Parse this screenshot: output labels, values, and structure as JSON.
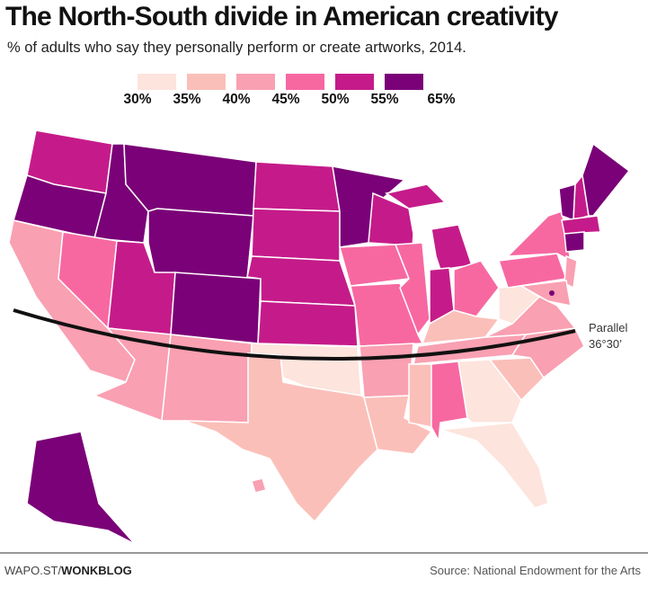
{
  "title": "The North-South divide in American creativity",
  "subtitle": "% of adults who say they personally perform or create artworks, 2014.",
  "legend": {
    "labels": [
      "30%",
      "35%",
      "40%",
      "45%",
      "50%",
      "55%",
      "65%"
    ],
    "colors": [
      "#fde4dc",
      "#fbbfb9",
      "#f9a0b2",
      "#f768a1",
      "#c51b8a",
      "#7a0177"
    ]
  },
  "states": {
    "WA": 4,
    "OR": 5,
    "CA": 2,
    "ID": 5,
    "NV": 3,
    "MT": 5,
    "WY": 5,
    "UT": 4,
    "AZ": 2,
    "CO": 5,
    "NM": 2,
    "ND": 4,
    "SD": 4,
    "NE": 4,
    "KS": 4,
    "OK": 0,
    "TX": 1,
    "MN": 5,
    "IA": 3,
    "MO": 3,
    "AR": 2,
    "LA": 1,
    "WI": 4,
    "IL": 3,
    "MI": 4,
    "IN": 4,
    "OH": 3,
    "KY": 1,
    "TN": 2,
    "MS": 1,
    "AL": 3,
    "GA": 0,
    "FL": 0,
    "SC": 1,
    "NC": 2,
    "VA": 2,
    "WV": 0,
    "PA": 3,
    "NY": 3,
    "NJ": 2,
    "MD": 2,
    "VT": 5,
    "NH": 4,
    "ME": 5,
    "MA": 4,
    "CT": 5,
    "AK": 5,
    "HI": 2
  },
  "annotation": {
    "line1": "Parallel",
    "line2": "36°30’"
  },
  "footer": {
    "left_prefix": "WAPO.ST/",
    "left_bold": "WONKBLOG",
    "source": "Source: National Endowment for the Arts"
  }
}
